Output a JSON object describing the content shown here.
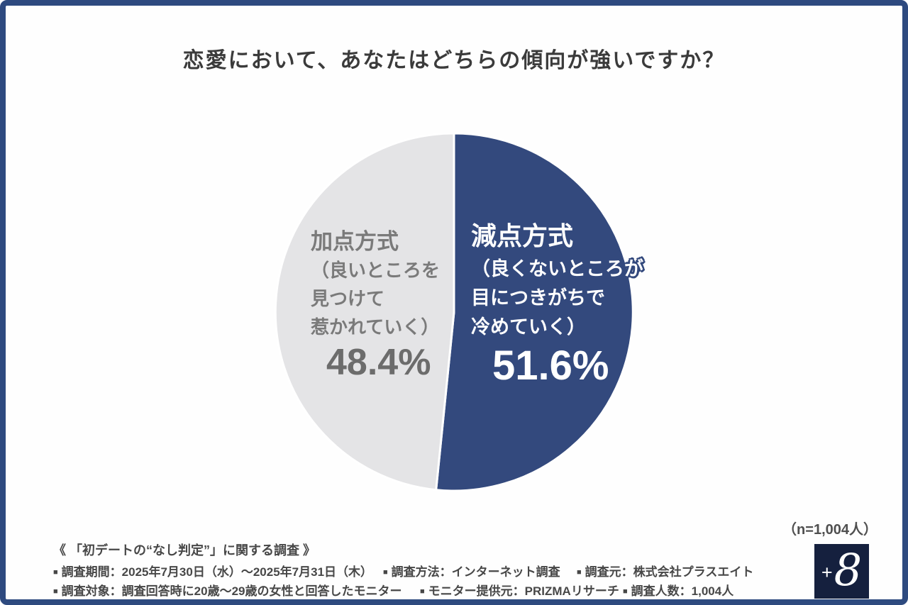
{
  "title": "恋愛において、あなたはどちらの傾向が強いですか？",
  "chart_data": {
    "type": "pie",
    "title": "恋愛において、あなたはどちらの傾向が強いですか？",
    "categories": [
      "減点方式（良くないところが目につきがちで冷めていく）",
      "加点方式（良いところを見つけて惹かれていく）"
    ],
    "values": [
      51.6,
      48.4
    ],
    "colors": [
      "#33497d",
      "#e4e4e6"
    ],
    "start_angle_deg": 0,
    "direction": "clockwise",
    "labels_position": "inside",
    "sample_note": "（n=1,004人）",
    "sample_size": 1004
  },
  "pie_labels": {
    "left": {
      "name": "加点方式",
      "desc_line1": "（良いところを",
      "desc_line2": "見つけて",
      "desc_line3": "惹かれていく）",
      "value": "48.4%"
    },
    "right": {
      "name": "減点方式",
      "desc_line1_main": "（良くないところ",
      "desc_line1_overflow": "が",
      "desc_line2": "目につきがちで",
      "desc_line3": "冷めていく）",
      "value": "51.6%"
    }
  },
  "sample_note": "（n=1,004人）",
  "footer": {
    "headline": "《 「初デートの“なし判定”」に関する調査 》",
    "bullet": "■",
    "items": {
      "period": "調査期間：2025年7月30日（水）～2025年7月31日（木）",
      "method": "調査方法：インターネット調査",
      "source": "調査元：株式会社プラスエイト",
      "target": "調査対象：調査回答時に20歳～29歳の女性と回答したモニター",
      "monitor": "モニター提供元：PRIZMAリサーチ",
      "count": "調査人数：1,004人"
    }
  },
  "logo": {
    "plus": "+",
    "eight": "8"
  },
  "colors": {
    "accent_blue": "#33497d",
    "slice_gray": "#e4e4e6",
    "border_navy": "#2e4a7f",
    "logo_navy": "#15203e",
    "title_text": "#3b3b3b",
    "gray_label_text": "#7a7a7a",
    "footer_text": "#474747"
  }
}
